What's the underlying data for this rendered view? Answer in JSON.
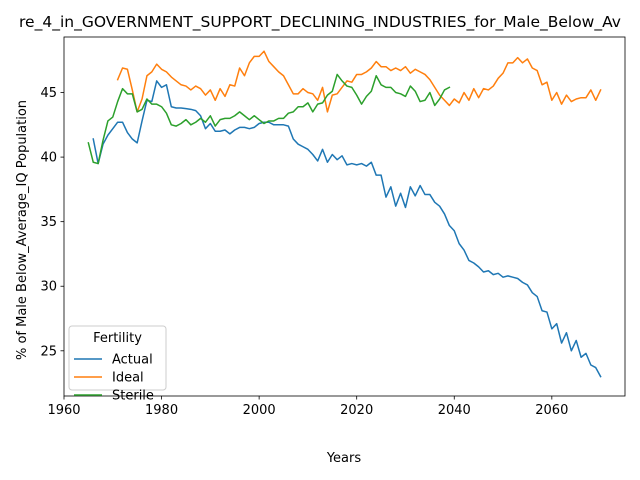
{
  "chart_data": {
    "type": "line",
    "title": "re_4_in_GOVERNMENT_SUPPORT_DECLINING_INDUSTRIES_for_Male_Below_Av",
    "xlabel": "Years",
    "ylabel": "% of Male Below_Average_IQ Population",
    "xlim": [
      1960,
      2075
    ],
    "ylim": [
      21.5,
      49.3
    ],
    "xticks": [
      1960,
      1980,
      2000,
      2020,
      2040,
      2060
    ],
    "yticks": [
      25,
      30,
      35,
      40,
      45
    ],
    "grid": false,
    "legend": {
      "title": "Fertility",
      "position": "lower-left"
    },
    "series": [
      {
        "name": "Actual",
        "color": "#1f77b4",
        "points": [
          [
            1966,
            41.4
          ],
          [
            1967,
            39.5
          ],
          [
            1968,
            41.0
          ],
          [
            1969,
            41.7
          ],
          [
            1970,
            42.2
          ],
          [
            1971,
            42.7
          ],
          [
            1972,
            42.7
          ],
          [
            1973,
            41.9
          ],
          [
            1974,
            41.4
          ],
          [
            1975,
            41.1
          ],
          [
            1976,
            42.8
          ],
          [
            1977,
            44.4
          ],
          [
            1978,
            44.3
          ],
          [
            1979,
            45.9
          ],
          [
            1980,
            45.4
          ],
          [
            1981,
            45.6
          ],
          [
            1982,
            43.9
          ],
          [
            1983,
            43.8
          ],
          [
            1984,
            43.8
          ],
          [
            1985,
            43.75
          ],
          [
            1986,
            43.7
          ],
          [
            1987,
            43.6
          ],
          [
            1988,
            43.2
          ],
          [
            1989,
            42.2
          ],
          [
            1990,
            42.6
          ],
          [
            1991,
            42.0
          ],
          [
            1992,
            42.0
          ],
          [
            1993,
            42.1
          ],
          [
            1994,
            41.8
          ],
          [
            1995,
            42.1
          ],
          [
            1996,
            42.3
          ],
          [
            1997,
            42.3
          ],
          [
            1998,
            42.2
          ],
          [
            1999,
            42.3
          ],
          [
            2000,
            42.6
          ],
          [
            2001,
            42.7
          ],
          [
            2002,
            42.7
          ],
          [
            2003,
            42.5
          ],
          [
            2004,
            42.5
          ],
          [
            2005,
            42.5
          ],
          [
            2006,
            42.4
          ],
          [
            2007,
            41.4
          ],
          [
            2008,
            41.0
          ],
          [
            2009,
            40.8
          ],
          [
            2010,
            40.6
          ],
          [
            2011,
            40.2
          ],
          [
            2012,
            39.7
          ],
          [
            2013,
            40.6
          ],
          [
            2014,
            39.6
          ],
          [
            2015,
            40.2
          ],
          [
            2016,
            39.8
          ],
          [
            2017,
            40.1
          ],
          [
            2018,
            39.4
          ],
          [
            2019,
            39.5
          ],
          [
            2020,
            39.4
          ],
          [
            2021,
            39.5
          ],
          [
            2022,
            39.3
          ],
          [
            2023,
            39.6
          ],
          [
            2024,
            38.6
          ],
          [
            2025,
            38.6
          ],
          [
            2026,
            36.9
          ],
          [
            2027,
            37.7
          ],
          [
            2028,
            36.2
          ],
          [
            2029,
            37.2
          ],
          [
            2030,
            36.1
          ],
          [
            2031,
            37.7
          ],
          [
            2032,
            37.0
          ],
          [
            2033,
            37.8
          ],
          [
            2034,
            37.1
          ],
          [
            2035,
            37.1
          ],
          [
            2036,
            36.5
          ],
          [
            2037,
            36.2
          ],
          [
            2038,
            35.6
          ],
          [
            2039,
            34.7
          ],
          [
            2040,
            34.3
          ],
          [
            2041,
            33.3
          ],
          [
            2042,
            32.8
          ],
          [
            2043,
            32.0
          ],
          [
            2044,
            31.8
          ],
          [
            2045,
            31.5
          ],
          [
            2046,
            31.1
          ],
          [
            2047,
            31.2
          ],
          [
            2048,
            30.9
          ],
          [
            2049,
            31.0
          ],
          [
            2050,
            30.7
          ],
          [
            2051,
            30.8
          ],
          [
            2052,
            30.7
          ],
          [
            2053,
            30.6
          ],
          [
            2054,
            30.3
          ],
          [
            2055,
            30.1
          ],
          [
            2056,
            29.5
          ],
          [
            2057,
            29.2
          ],
          [
            2058,
            28.1
          ],
          [
            2059,
            28.0
          ],
          [
            2060,
            26.7
          ],
          [
            2061,
            27.1
          ],
          [
            2062,
            25.6
          ],
          [
            2063,
            26.4
          ],
          [
            2064,
            25.0
          ],
          [
            2065,
            25.8
          ],
          [
            2066,
            24.5
          ],
          [
            2067,
            24.8
          ],
          [
            2068,
            23.9
          ],
          [
            2069,
            23.7
          ],
          [
            2070,
            23.0
          ]
        ]
      },
      {
        "name": "Ideal",
        "color": "#ff7f0e",
        "points": [
          [
            1971,
            46.0
          ],
          [
            1972,
            46.9
          ],
          [
            1973,
            46.8
          ],
          [
            1974,
            45.2
          ],
          [
            1975,
            43.5
          ],
          [
            1976,
            44.5
          ],
          [
            1977,
            46.3
          ],
          [
            1978,
            46.6
          ],
          [
            1979,
            47.2
          ],
          [
            1980,
            46.8
          ],
          [
            1981,
            46.6
          ],
          [
            1982,
            46.2
          ],
          [
            1983,
            45.9
          ],
          [
            1984,
            45.6
          ],
          [
            1985,
            45.5
          ],
          [
            1986,
            45.2
          ],
          [
            1987,
            45.5
          ],
          [
            1988,
            45.3
          ],
          [
            1989,
            44.8
          ],
          [
            1990,
            45.2
          ],
          [
            1991,
            44.4
          ],
          [
            1992,
            45.3
          ],
          [
            1993,
            44.7
          ],
          [
            1994,
            45.6
          ],
          [
            1995,
            45.5
          ],
          [
            1996,
            46.9
          ],
          [
            1997,
            46.3
          ],
          [
            1998,
            47.3
          ],
          [
            1999,
            47.8
          ],
          [
            2000,
            47.8
          ],
          [
            2001,
            48.2
          ],
          [
            2002,
            47.4
          ],
          [
            2003,
            47.0
          ],
          [
            2004,
            46.6
          ],
          [
            2005,
            46.3
          ],
          [
            2006,
            45.6
          ],
          [
            2007,
            44.9
          ],
          [
            2008,
            44.9
          ],
          [
            2009,
            45.3
          ],
          [
            2010,
            45.0
          ],
          [
            2011,
            44.9
          ],
          [
            2012,
            44.4
          ],
          [
            2013,
            45.4
          ],
          [
            2014,
            43.5
          ],
          [
            2015,
            44.8
          ],
          [
            2016,
            44.9
          ],
          [
            2017,
            45.4
          ],
          [
            2018,
            45.9
          ],
          [
            2019,
            45.8
          ],
          [
            2020,
            46.4
          ],
          [
            2021,
            46.4
          ],
          [
            2022,
            46.6
          ],
          [
            2023,
            46.9
          ],
          [
            2024,
            47.4
          ],
          [
            2025,
            47.0
          ],
          [
            2026,
            47.0
          ],
          [
            2027,
            46.7
          ],
          [
            2028,
            46.9
          ],
          [
            2029,
            46.7
          ],
          [
            2030,
            47.0
          ],
          [
            2031,
            46.5
          ],
          [
            2032,
            46.8
          ],
          [
            2033,
            46.6
          ],
          [
            2034,
            46.4
          ],
          [
            2035,
            46.0
          ],
          [
            2036,
            45.4
          ],
          [
            2037,
            44.8
          ],
          [
            2038,
            44.4
          ],
          [
            2039,
            44.0
          ],
          [
            2040,
            44.5
          ],
          [
            2041,
            44.2
          ],
          [
            2042,
            45.0
          ],
          [
            2043,
            44.4
          ],
          [
            2044,
            45.3
          ],
          [
            2045,
            44.6
          ],
          [
            2046,
            45.3
          ],
          [
            2047,
            45.2
          ],
          [
            2048,
            45.5
          ],
          [
            2049,
            46.1
          ],
          [
            2050,
            46.5
          ],
          [
            2051,
            47.3
          ],
          [
            2052,
            47.3
          ],
          [
            2053,
            47.7
          ],
          [
            2054,
            47.3
          ],
          [
            2055,
            47.6
          ],
          [
            2056,
            46.9
          ],
          [
            2057,
            46.7
          ],
          [
            2058,
            45.6
          ],
          [
            2059,
            45.8
          ],
          [
            2060,
            44.4
          ],
          [
            2061,
            45.0
          ],
          [
            2062,
            44.1
          ],
          [
            2063,
            44.8
          ],
          [
            2064,
            44.3
          ],
          [
            2065,
            44.5
          ],
          [
            2066,
            44.6
          ],
          [
            2067,
            44.6
          ],
          [
            2068,
            45.2
          ],
          [
            2069,
            44.4
          ],
          [
            2070,
            45.2
          ]
        ]
      },
      {
        "name": "Sterile",
        "color": "#2ca02c",
        "points": [
          [
            1965,
            41.1
          ],
          [
            1966,
            39.6
          ],
          [
            1967,
            39.5
          ],
          [
            1968,
            41.3
          ],
          [
            1969,
            42.8
          ],
          [
            1970,
            43.1
          ],
          [
            1971,
            44.3
          ],
          [
            1972,
            45.3
          ],
          [
            1973,
            44.9
          ],
          [
            1974,
            44.9
          ],
          [
            1975,
            43.5
          ],
          [
            1976,
            43.7
          ],
          [
            1977,
            44.5
          ],
          [
            1978,
            44.1
          ],
          [
            1979,
            44.1
          ],
          [
            1980,
            43.9
          ],
          [
            1981,
            43.4
          ],
          [
            1982,
            42.5
          ],
          [
            1983,
            42.4
          ],
          [
            1984,
            42.6
          ],
          [
            1985,
            42.9
          ],
          [
            1986,
            42.5
          ],
          [
            1987,
            42.7
          ],
          [
            1988,
            43.0
          ],
          [
            1989,
            42.7
          ],
          [
            1990,
            43.2
          ],
          [
            1991,
            42.4
          ],
          [
            1992,
            42.9
          ],
          [
            1993,
            43.0
          ],
          [
            1994,
            43.0
          ],
          [
            1995,
            43.2
          ],
          [
            1996,
            43.5
          ],
          [
            1997,
            43.2
          ],
          [
            1998,
            42.9
          ],
          [
            1999,
            43.2
          ],
          [
            2000,
            42.9
          ],
          [
            2001,
            42.6
          ],
          [
            2002,
            42.8
          ],
          [
            2003,
            42.8
          ],
          [
            2004,
            43.0
          ],
          [
            2005,
            43.0
          ],
          [
            2006,
            43.4
          ],
          [
            2007,
            43.5
          ],
          [
            2008,
            43.9
          ],
          [
            2009,
            43.9
          ],
          [
            2010,
            44.2
          ],
          [
            2011,
            43.5
          ],
          [
            2012,
            44.1
          ],
          [
            2013,
            44.2
          ],
          [
            2014,
            44.8
          ],
          [
            2015,
            45.1
          ],
          [
            2016,
            46.4
          ],
          [
            2017,
            45.9
          ],
          [
            2018,
            45.5
          ],
          [
            2019,
            45.4
          ],
          [
            2020,
            44.8
          ],
          [
            2021,
            44.1
          ],
          [
            2022,
            44.7
          ],
          [
            2023,
            45.1
          ],
          [
            2024,
            46.3
          ],
          [
            2025,
            45.6
          ],
          [
            2026,
            45.4
          ],
          [
            2027,
            45.4
          ],
          [
            2028,
            45.0
          ],
          [
            2029,
            44.9
          ],
          [
            2030,
            44.7
          ],
          [
            2031,
            45.5
          ],
          [
            2032,
            45.1
          ],
          [
            2033,
            44.3
          ],
          [
            2034,
            44.4
          ],
          [
            2035,
            45.0
          ],
          [
            2036,
            44.0
          ],
          [
            2037,
            44.5
          ],
          [
            2038,
            45.2
          ],
          [
            2039,
            45.4
          ]
        ]
      }
    ]
  }
}
